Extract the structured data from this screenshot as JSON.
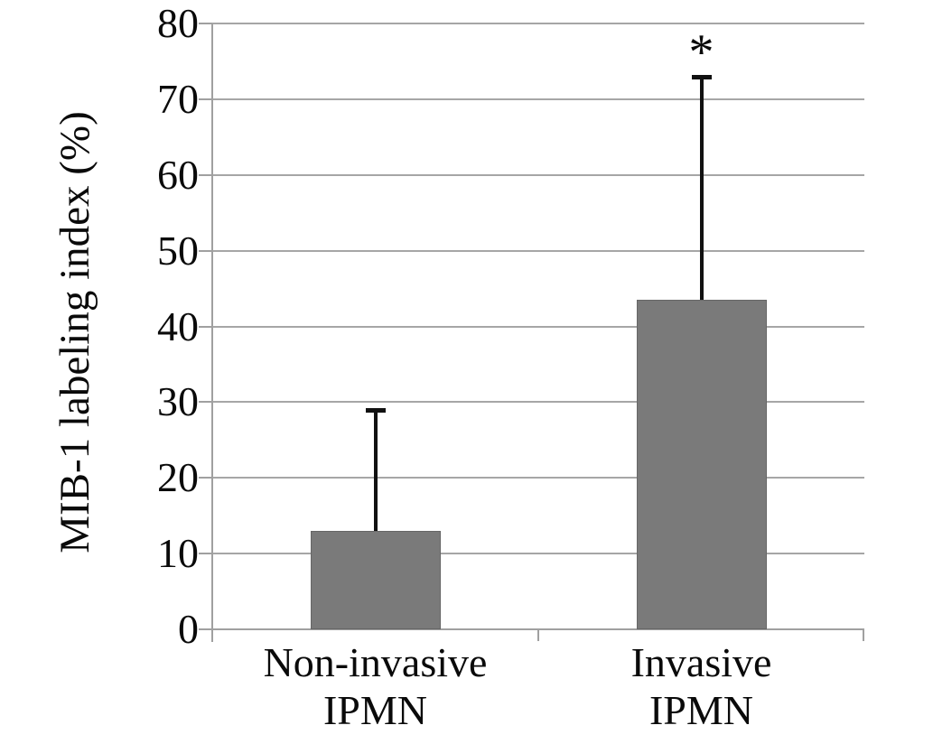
{
  "figure": {
    "background": "#ffffff"
  },
  "chart_data": {
    "type": "bar",
    "title": "",
    "ylabel": "MIB-1 labeling index (%)",
    "xlabel": "",
    "categories": [
      "Non-invasive IPMN",
      "Invasive IPMN"
    ],
    "category_lines": [
      [
        "Non-invasive",
        "IPMN"
      ],
      [
        "Invasive",
        "IPMN"
      ]
    ],
    "values": [
      13,
      43.5
    ],
    "error_plus": [
      16,
      29.5
    ],
    "error_bar_tops": [
      29,
      73
    ],
    "annotations": [
      {
        "text": "*",
        "category_index": 1,
        "position": "above-error-bar"
      }
    ],
    "yticks": [
      0,
      10,
      20,
      30,
      40,
      50,
      60,
      70,
      80
    ],
    "ylim": [
      0,
      80
    ],
    "grid": true,
    "legend": false,
    "bar_color": "#7a7a7a",
    "bar_border_color": "#666666",
    "gridline_color": "#a6a6a6",
    "axis_color": "#a0a0a0",
    "error_color": "#111111",
    "text_color": "#0a0a0a"
  }
}
